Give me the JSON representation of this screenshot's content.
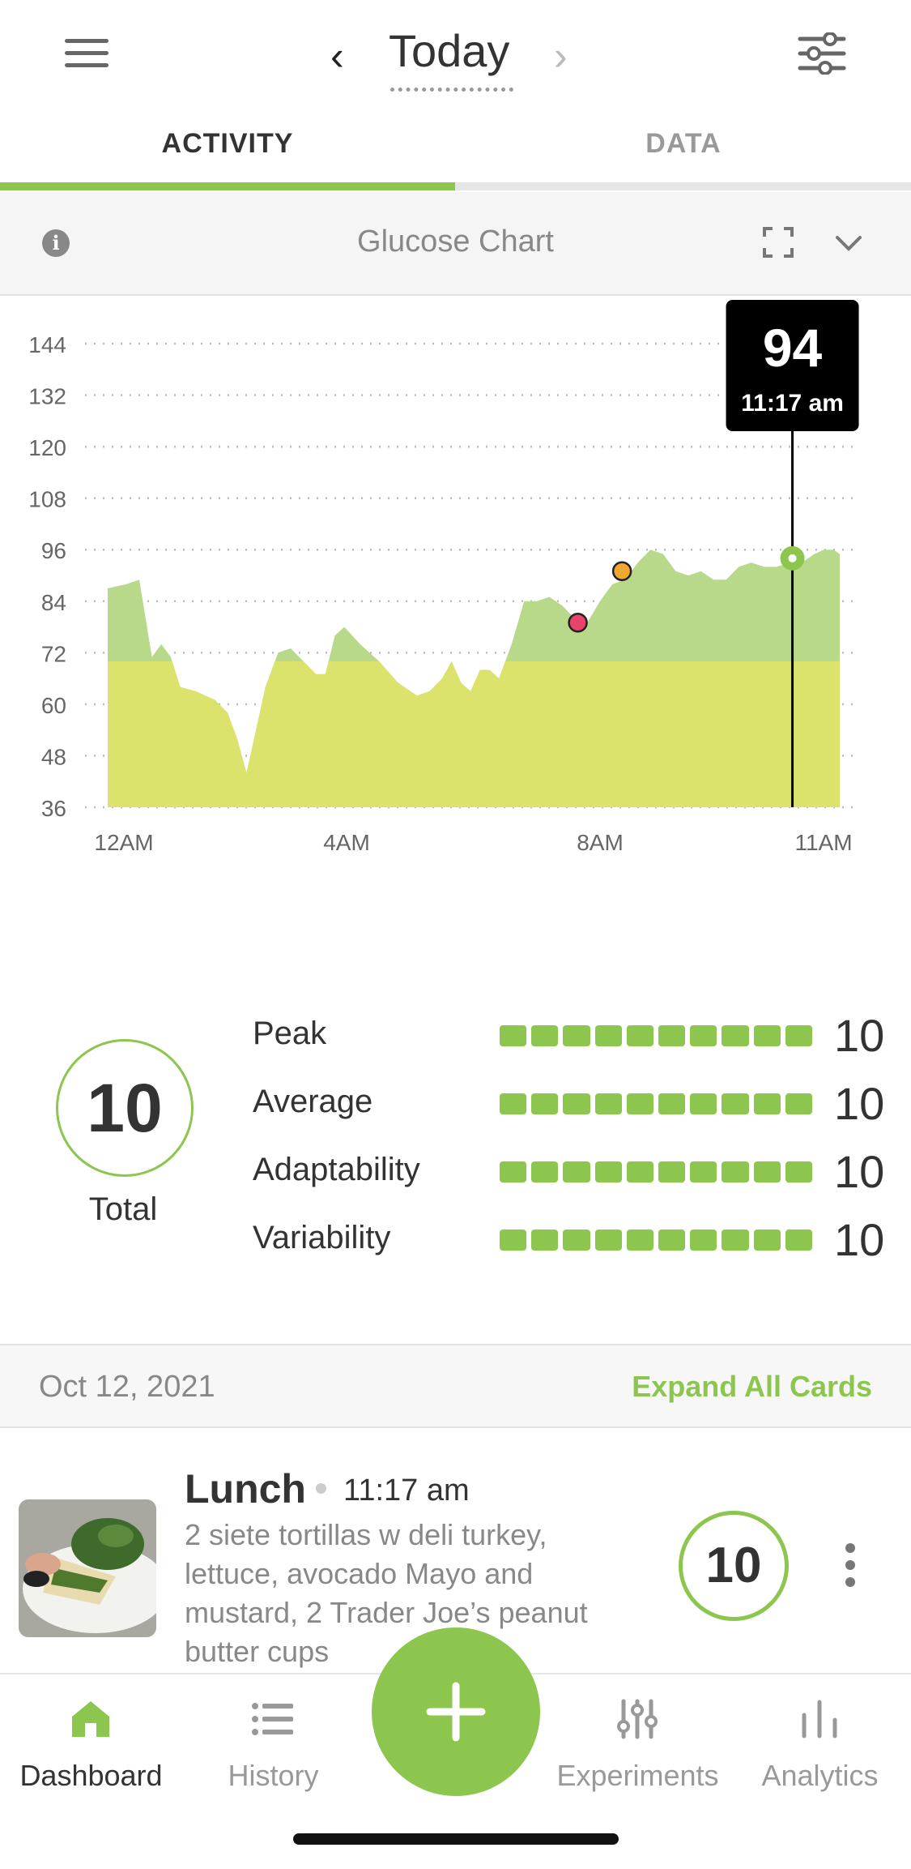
{
  "header": {
    "title": "Today"
  },
  "tabs": [
    {
      "label": "ACTIVITY",
      "active": true
    },
    {
      "label": "DATA",
      "active": false
    }
  ],
  "chart_header": {
    "title": "Glucose Chart"
  },
  "chart_data": {
    "type": "area",
    "y_ticks": [
      "144",
      "132",
      "120",
      "108",
      "96",
      "84",
      "72",
      "60",
      "48",
      "36"
    ],
    "x_ticks": [
      "12AM",
      "4AM",
      "8AM",
      "11AM"
    ],
    "ylim": [
      36,
      144
    ],
    "xlim_hours": [
      0,
      11.6
    ],
    "threshold": 70,
    "points": [
      [
        0,
        87
      ],
      [
        0.3,
        88
      ],
      [
        0.5,
        89
      ],
      [
        0.6,
        80
      ],
      [
        0.7,
        71
      ],
      [
        0.85,
        74
      ],
      [
        1.0,
        71
      ],
      [
        1.15,
        64
      ],
      [
        1.4,
        63
      ],
      [
        1.7,
        61
      ],
      [
        1.9,
        58
      ],
      [
        2.05,
        52
      ],
      [
        2.2,
        44
      ],
      [
        2.35,
        54
      ],
      [
        2.5,
        64
      ],
      [
        2.7,
        72
      ],
      [
        2.9,
        73
      ],
      [
        3.1,
        70
      ],
      [
        3.3,
        67
      ],
      [
        3.45,
        67
      ],
      [
        3.6,
        76
      ],
      [
        3.75,
        78
      ],
      [
        4.0,
        74
      ],
      [
        4.3,
        70
      ],
      [
        4.6,
        65
      ],
      [
        4.9,
        62
      ],
      [
        5.1,
        63
      ],
      [
        5.3,
        66
      ],
      [
        5.45,
        70
      ],
      [
        5.6,
        65
      ],
      [
        5.75,
        63
      ],
      [
        5.9,
        68
      ],
      [
        6.05,
        68
      ],
      [
        6.2,
        66
      ],
      [
        6.4,
        74
      ],
      [
        6.6,
        84
      ],
      [
        6.8,
        84
      ],
      [
        7.0,
        85
      ],
      [
        7.2,
        83
      ],
      [
        7.4,
        80
      ],
      [
        7.6,
        79
      ],
      [
        7.8,
        84
      ],
      [
        8.0,
        88
      ],
      [
        8.2,
        89
      ],
      [
        8.4,
        93
      ],
      [
        8.6,
        96
      ],
      [
        8.8,
        95
      ],
      [
        9.0,
        91
      ],
      [
        9.2,
        90
      ],
      [
        9.4,
        91
      ],
      [
        9.6,
        89
      ],
      [
        9.8,
        89
      ],
      [
        10.0,
        92
      ],
      [
        10.2,
        93
      ],
      [
        10.4,
        92
      ],
      [
        10.6,
        92
      ],
      [
        10.8,
        93
      ],
      [
        11.0,
        93
      ],
      [
        11.2,
        95
      ],
      [
        11.35,
        96
      ],
      [
        11.5,
        96
      ],
      [
        11.6,
        95
      ]
    ],
    "markers": [
      {
        "x": 7.45,
        "y": 79,
        "color": "#e8446a"
      },
      {
        "x": 8.15,
        "y": 91,
        "color": "#f0a732"
      }
    ],
    "tooltip": {
      "value": "94",
      "time": "11:17 am",
      "x": 10.85,
      "y": 94
    },
    "colors": {
      "above": "#b9d98a",
      "below": "#dce36c",
      "line": "#000000",
      "grid": "#bbbbbb",
      "current": "#8dc64e"
    }
  },
  "scores": {
    "total_value": "10",
    "total_label": "Total",
    "metrics": [
      {
        "label": "Peak",
        "value": "10",
        "level": 1.0
      },
      {
        "label": "Average",
        "value": "10",
        "level": 1.0
      },
      {
        "label": "Adaptability",
        "value": "10",
        "level": 1.0
      },
      {
        "label": "Variability",
        "value": "10",
        "level": 1.0
      }
    ]
  },
  "date_bar": {
    "date": "Oct 12, 2021",
    "expand_label": "Expand All Cards"
  },
  "meal_card": {
    "title": "Lunch",
    "time": "11:17 am",
    "description": "2 siete tortillas w deli turkey, lettuce, avocado Mayo and mustard, 2 Trader Joe’s peanut butter cups",
    "score": "10"
  },
  "bottom_nav": {
    "items": [
      {
        "label": "Dashboard",
        "icon": "home-icon",
        "active": true
      },
      {
        "label": "History",
        "icon": "list-icon",
        "active": false
      },
      {
        "label": "Experiments",
        "icon": "sliders-icon",
        "active": false
      },
      {
        "label": "Analytics",
        "icon": "bar-chart-icon",
        "active": false
      }
    ]
  },
  "theme": {
    "accent": "#8dc64e",
    "text": "#333333",
    "muted": "#888888"
  }
}
